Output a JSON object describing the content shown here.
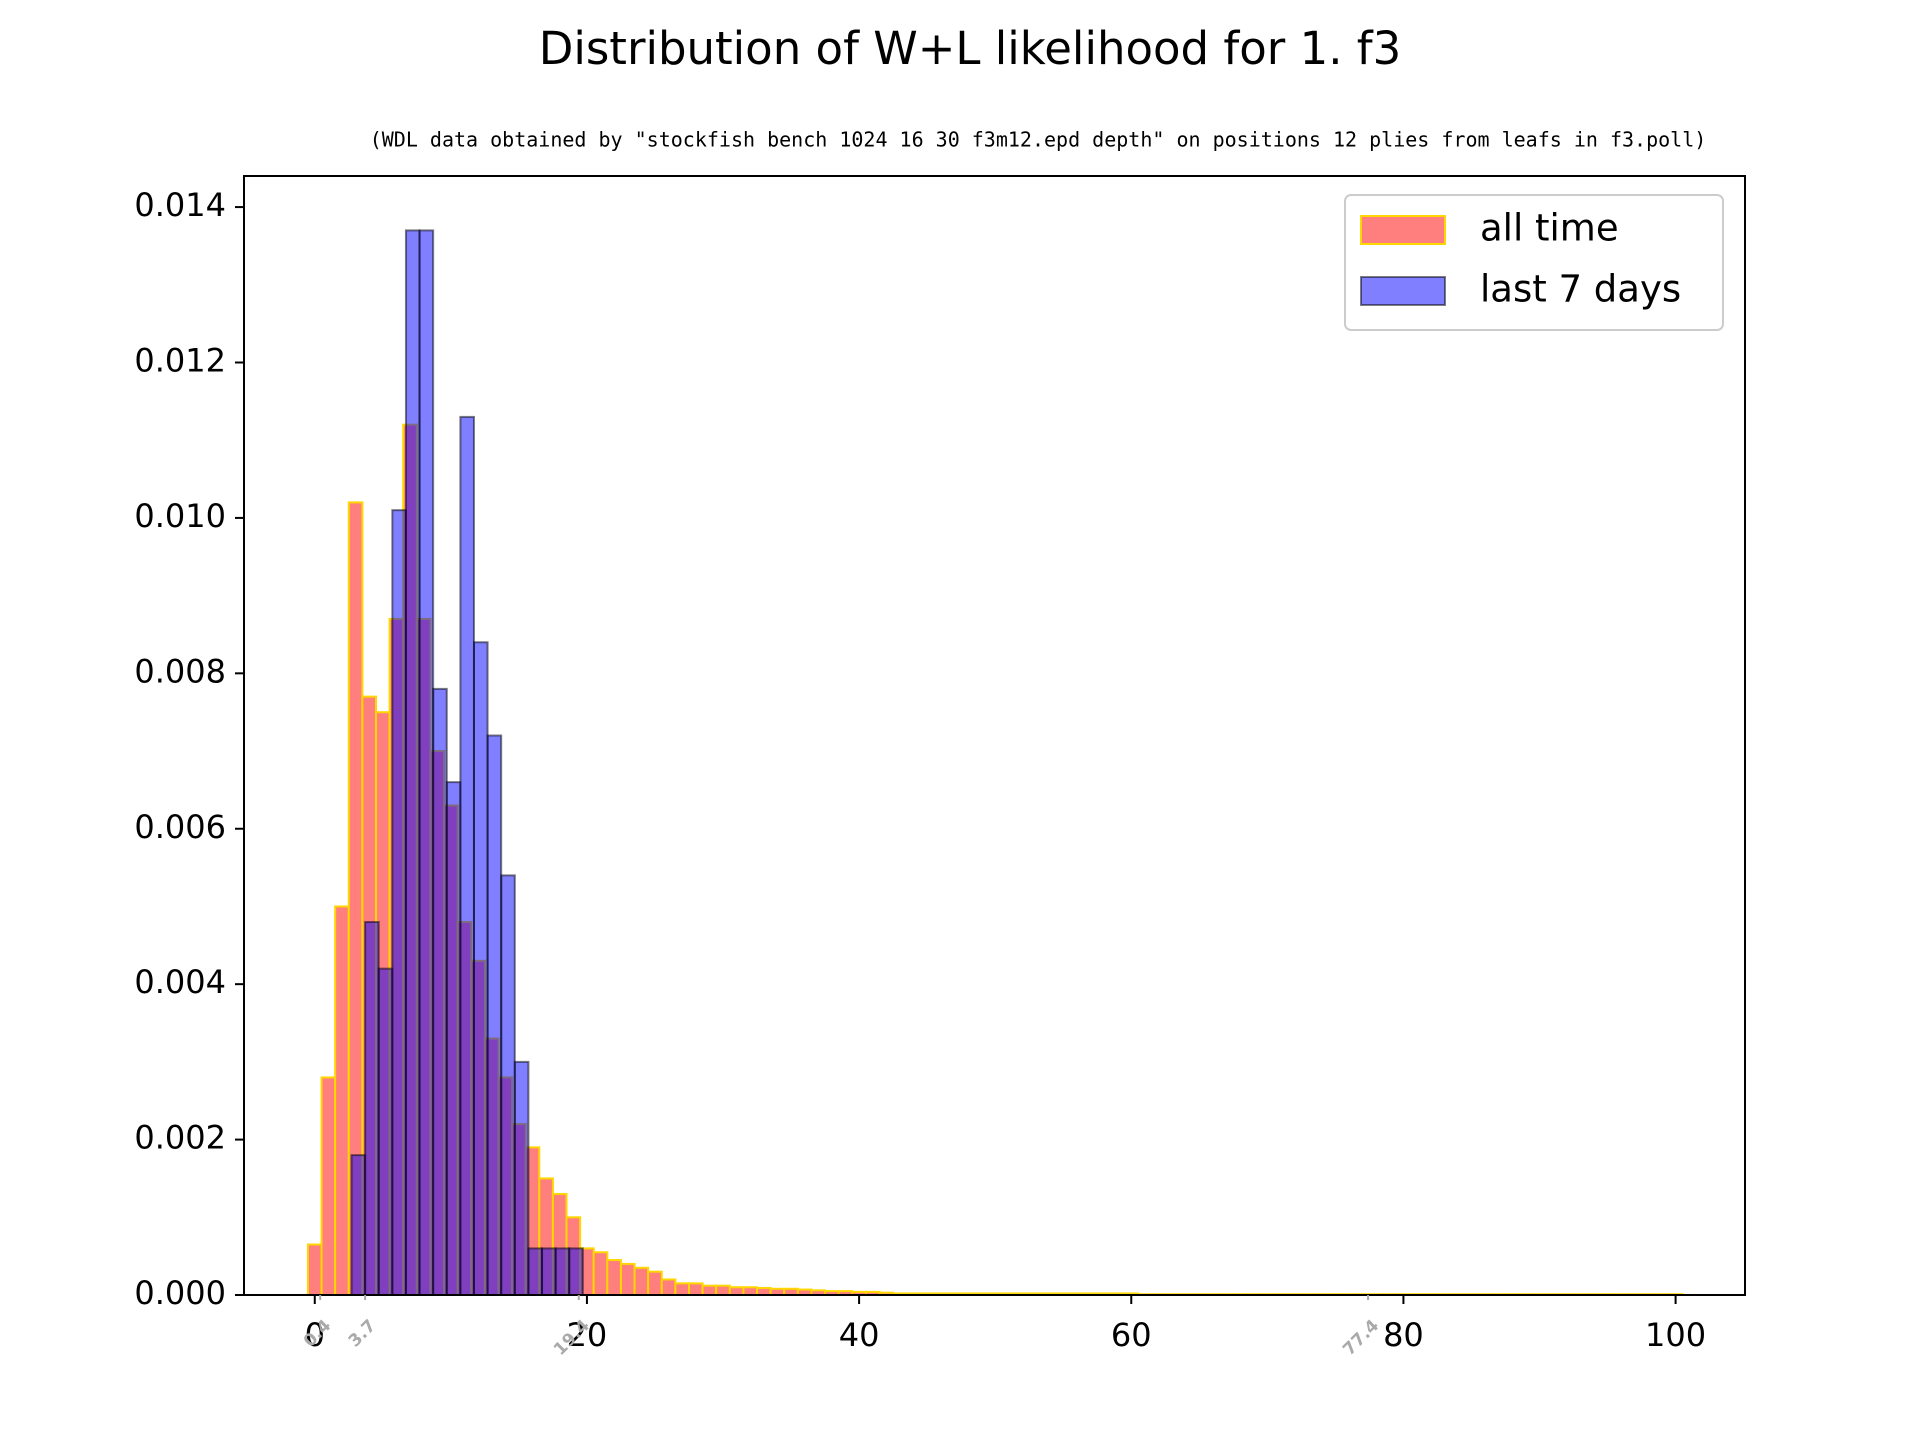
{
  "chart_data": {
    "type": "histogram",
    "title": "Distribution of W+L likelihood for 1. f3",
    "subtitle": "(WDL data obtained by \"stockfish bench 1024 16 30 f3m12.epd depth\" on positions 12 plies from leafs in f3.poll)",
    "series": [
      {
        "name": "all time",
        "color": "#ff0000",
        "edgecolor": "#ffd700",
        "alpha": 0.5,
        "bins": [
          -0.5,
          0.5,
          1.5,
          2.5,
          3.5,
          4.5,
          5.5,
          6.5,
          7.5,
          8.5,
          9.5,
          10.5,
          11.5,
          12.5,
          13.5,
          14.5,
          15.5,
          16.5,
          17.5,
          18.5,
          19.5,
          20.5,
          21.5,
          22.5,
          23.5,
          24.5,
          25.5,
          26.5,
          27.5,
          28.5,
          29.5,
          30.5,
          31.5,
          32.5,
          33.5,
          34.5,
          35.5,
          36.5,
          37.5,
          38.5,
          39.5,
          40.5,
          41.5,
          42.5,
          43.5,
          44.5,
          45.5,
          46.5,
          47.5,
          48.5,
          49.5,
          50.5,
          51.5,
          52.5,
          53.5,
          54.5,
          55.5,
          56.5,
          57.5,
          58.5,
          59.5,
          60.5,
          61.5,
          62.5,
          63.5,
          64.5,
          65.5,
          66.5,
          67.5,
          68.5,
          69.5,
          70.5,
          71.5,
          72.5,
          73.5,
          74.5,
          75.5,
          76.5,
          77.5,
          78.5,
          79.5,
          80.5,
          81.5,
          82.5,
          83.5,
          84.5,
          85.5,
          86.5,
          87.5,
          88.5,
          89.5,
          90.5,
          91.5,
          92.5,
          93.5,
          94.5,
          95.5,
          96.5,
          97.5,
          98.5,
          99.5,
          100.5
        ],
        "values": [
          0.00065,
          0.0028,
          0.005,
          0.0102,
          0.0077,
          0.0075,
          0.0087,
          0.0112,
          0.0087,
          0.007,
          0.0063,
          0.0048,
          0.0043,
          0.0033,
          0.0028,
          0.0022,
          0.0019,
          0.0015,
          0.0013,
          0.001,
          0.0006,
          0.00055,
          0.00045,
          0.0004,
          0.00035,
          0.0003,
          0.0002,
          0.00015,
          0.00015,
          0.00012,
          0.00012,
          0.0001,
          0.0001,
          9e-05,
          8e-05,
          8e-05,
          7e-05,
          6e-05,
          5e-05,
          5e-05,
          4e-05,
          4e-05,
          3e-05,
          2e-05,
          2e-05,
          2e-05,
          2e-05,
          2e-05,
          2e-05,
          2e-05,
          2e-05,
          2e-05,
          2e-05,
          2e-05,
          2e-05,
          2e-05,
          2e-05,
          2e-05,
          2e-05,
          2e-05,
          2e-05,
          1e-05,
          1e-05,
          1e-05,
          1e-05,
          1e-05,
          1e-05,
          1e-05,
          1e-05,
          1e-05,
          1e-05,
          1e-05,
          1e-05,
          1e-05,
          1e-05,
          1e-05,
          1e-05,
          1e-05,
          1e-05,
          1e-05,
          1e-05,
          1e-05,
          1e-05,
          1e-05,
          1e-05,
          1e-05,
          1e-05,
          1e-05,
          1e-05,
          1e-05,
          1e-05,
          1e-05,
          1e-05,
          1e-05,
          1e-05,
          1e-05,
          1e-05,
          1e-05,
          1e-05,
          1e-05,
          1e-05,
          1e-05
        ]
      },
      {
        "name": "last 7 days",
        "color": "#0000ff",
        "edgecolor": "#000000",
        "alpha": 0.5,
        "bins": [
          2.7,
          3.7,
          4.7,
          5.7,
          6.7,
          7.7,
          8.7,
          9.7,
          10.7,
          11.7,
          12.7,
          13.7,
          14.7,
          15.7,
          16.7,
          17.7,
          18.7,
          19.7
        ],
        "values": [
          0.0018,
          0.0048,
          0.0042,
          0.0101,
          0.0137,
          0.0137,
          0.0078,
          0.0066,
          0.0113,
          0.0084,
          0.0072,
          0.0054,
          0.003,
          0.0006,
          0.0006,
          0.0006,
          0.0006
        ]
      }
    ],
    "xlim": [
      -5.2,
      105.1
    ],
    "xticks": [
      0,
      20,
      40,
      60,
      80,
      100
    ],
    "ylim": [
      0,
      0.0144
    ],
    "yticks": [
      {
        "value": 0,
        "label": "0.000"
      },
      {
        "value": 0.002,
        "label": "0.002"
      },
      {
        "value": 0.004,
        "label": "0.004"
      },
      {
        "value": 0.006,
        "label": "0.006"
      },
      {
        "value": 0.008,
        "label": "0.008"
      },
      {
        "value": 0.01,
        "label": "0.010"
      },
      {
        "value": 0.012,
        "label": "0.012"
      },
      {
        "value": 0.014,
        "label": "0.014"
      }
    ],
    "percentile_ticks": [
      0.4,
      3.7,
      19.4,
      77.4
    ],
    "percentile_color": "#aaaaaa",
    "grid": false,
    "legend": "upper right"
  }
}
